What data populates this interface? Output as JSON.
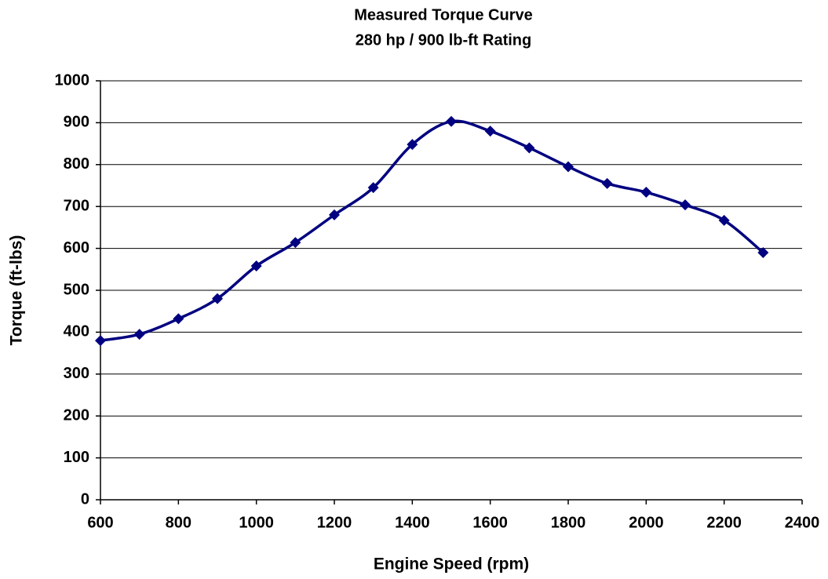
{
  "chart_data": {
    "type": "line",
    "title": "Measured Torque Curve",
    "subtitle": "280 hp / 900 lb-ft Rating",
    "x_label": "Engine Speed (rpm)",
    "y_label": "Torque (ft-lbs)",
    "x": [
      600,
      700,
      800,
      900,
      1000,
      1100,
      1200,
      1300,
      1400,
      1500,
      1600,
      1700,
      1800,
      1900,
      2000,
      2100,
      2200,
      2300
    ],
    "series": [
      {
        "name": "Torque",
        "color": "#000080",
        "values": [
          380,
          395,
          432,
          480,
          558,
          614,
          680,
          745,
          848,
          903,
          880,
          840,
          795,
          755,
          734,
          704,
          667,
          590
        ]
      }
    ],
    "xlim": [
      600,
      2400
    ],
    "xticks": [
      600,
      800,
      1000,
      1200,
      1400,
      1600,
      1800,
      2000,
      2200,
      2400
    ],
    "ylim": [
      0,
      1000
    ],
    "yticks": [
      0,
      100,
      200,
      300,
      400,
      500,
      600,
      700,
      800,
      900,
      1000
    ],
    "grid": true,
    "smooth": true
  }
}
